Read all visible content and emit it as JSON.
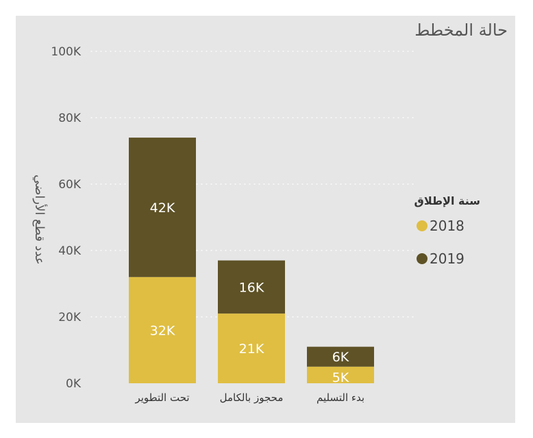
{
  "chart_data": {
    "type": "bar",
    "stacked": true,
    "title": "حالة المخطط",
    "ylabel": "عدد قطع الأراضي",
    "xlabel": "",
    "ylim": [
      0,
      100000
    ],
    "yticks": [
      0,
      20000,
      40000,
      60000,
      80000,
      100000
    ],
    "ytick_labels": [
      "0K",
      "20K",
      "40K",
      "60K",
      "80K",
      "100K"
    ],
    "categories": [
      "تحت التطوير",
      "محجوز بالكامل",
      "بدء التسليم"
    ],
    "legend_title": "سنة الإطلاق",
    "legend_position": "right",
    "series": [
      {
        "name": "2018",
        "color": "#dfbe42",
        "values": [
          32000,
          21000,
          5000
        ],
        "labels": [
          "32K",
          "21K",
          "5K"
        ]
      },
      {
        "name": "2019",
        "color": "#5e5226",
        "values": [
          42000,
          16000,
          6000
        ],
        "labels": [
          "42K",
          "16K",
          "6K"
        ]
      }
    ],
    "grid": true
  }
}
